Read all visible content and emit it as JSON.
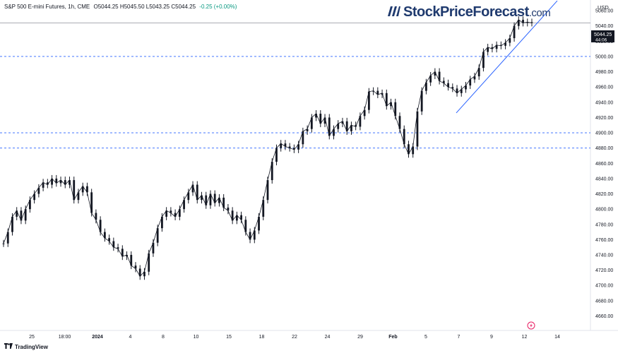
{
  "header": {
    "symbol": "S&P 500 E-mini Futures, 1h, CME",
    "ohlc": "O5044.25  H5045.50  L5043.25  C5044.25",
    "change": "-0.25 (+0.00%)"
  },
  "logo": {
    "brand": "StockPriceForecast",
    "suffix": ".com"
  },
  "currency": "USD",
  "last_price": {
    "value": "5044.25",
    "countdown": "44:06"
  },
  "footer": {
    "brand": "TradingView"
  },
  "colors": {
    "up": "#089981",
    "down": "#f23645",
    "trendline": "#2962ff",
    "dashed": "#2962ff",
    "price_line": "#787b86"
  },
  "chart_data": {
    "type": "line",
    "title": "",
    "xlabel": "",
    "ylabel": "",
    "x_ticks": [
      "25",
      "18:00",
      "2024",
      "4",
      "8",
      "10",
      "15",
      "18",
      "22",
      "24",
      "29",
      "Feb",
      "5",
      "7",
      "9",
      "12",
      "14"
    ],
    "y_ticks": [
      4660,
      4680,
      4700,
      4720,
      4740,
      4760,
      4780,
      4800,
      4820,
      4840,
      4860,
      4880,
      4900,
      4920,
      4940,
      4960,
      4980,
      5000,
      5020,
      5040,
      5060
    ],
    "ylim": [
      4641,
      5074
    ],
    "horizontal_levels": [
      5000,
      4900,
      4880
    ],
    "trendline": {
      "from": 4926,
      "to": 5073
    },
    "series": [
      {
        "values": [
          4755,
          4770,
          4790,
          4798,
          4785,
          4800,
          4812,
          4820,
          4828,
          4835,
          4832,
          4840,
          4834,
          4838,
          4832,
          4838,
          4812,
          4822,
          4830,
          4822,
          4795,
          4786,
          4770,
          4762,
          4758,
          4750,
          4748,
          4738,
          4740,
          4726,
          4722,
          4712,
          4718,
          4742,
          4756,
          4775,
          4790,
          4798,
          4795,
          4790,
          4800,
          4812,
          4822,
          4832,
          4812,
          4818,
          4805,
          4820,
          4808,
          4815,
          4802,
          4798,
          4785,
          4792,
          4786,
          4770,
          4760,
          4772,
          4790,
          4812,
          4838,
          4862,
          4880,
          4886,
          4882,
          4880,
          4878,
          4885,
          4902,
          4905,
          4920,
          4925,
          4912,
          4920,
          4896,
          4905,
          4912,
          4915,
          4902,
          4910,
          4908,
          4922,
          4930,
          4954,
          4955,
          4950,
          4952,
          4935,
          4940,
          4922,
          4905,
          4885,
          4872,
          4882,
          4928,
          4955,
          4966,
          4975,
          4980,
          4968,
          4965,
          4960,
          4958,
          4952,
          4957,
          4962,
          4970,
          4974,
          4985,
          5006,
          5012,
          5010,
          5015,
          5014,
          5018,
          5024,
          5040,
          5048,
          5044,
          5045,
          5044
        ]
      }
    ]
  }
}
